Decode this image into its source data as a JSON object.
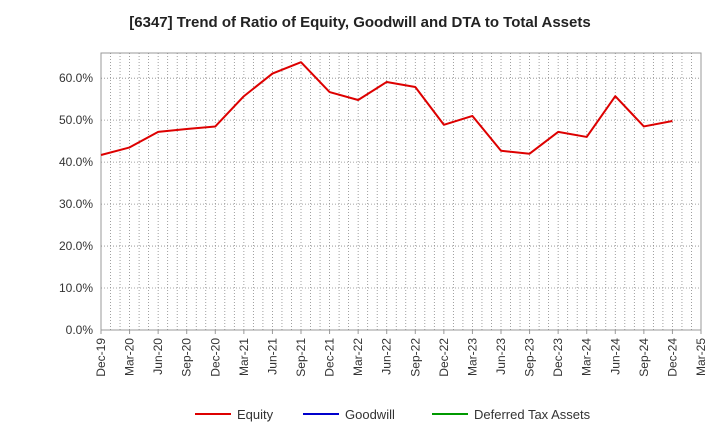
{
  "chart_data": {
    "type": "line",
    "title": "[6347]  Trend of Ratio of Equity, Goodwill and DTA to Total Assets",
    "xlabel": "",
    "ylabel": "",
    "x_tick_labels": [
      "Dec-19",
      "Mar-20",
      "Jun-20",
      "Sep-20",
      "Dec-20",
      "Mar-21",
      "Jun-21",
      "Sep-21",
      "Dec-21",
      "Mar-22",
      "Jun-22",
      "Sep-22",
      "Dec-22",
      "Mar-23",
      "Jun-23",
      "Sep-23",
      "Dec-23",
      "Mar-24",
      "Jun-24",
      "Sep-24",
      "Dec-24",
      "Mar-25"
    ],
    "y_tick_labels": [
      "0.0%",
      "10.0%",
      "20.0%",
      "30.0%",
      "40.0%",
      "50.0%",
      "60.0%"
    ],
    "ylim": [
      0,
      66
    ],
    "grid": true,
    "legend_position": "bottom",
    "series": [
      {
        "name": "Equity",
        "color": "#dd0000",
        "x": [
          "Dec-19",
          "Mar-20",
          "Jun-20",
          "Sep-20",
          "Dec-20",
          "Mar-21",
          "Jun-21",
          "Sep-21",
          "Dec-21",
          "Mar-22",
          "Jun-22",
          "Sep-22",
          "Dec-22",
          "Mar-23",
          "Jun-23",
          "Sep-23",
          "Dec-23",
          "Mar-24",
          "Jun-24",
          "Sep-24",
          "Dec-24"
        ],
        "values": [
          41.7,
          43.5,
          47.2,
          47.9,
          48.5,
          55.7,
          61.1,
          63.8,
          56.7,
          54.8,
          59.1,
          57.9,
          48.9,
          51.0,
          42.7,
          42.0,
          47.2,
          46.0,
          55.7,
          48.5,
          49.8
        ]
      },
      {
        "name": "Goodwill",
        "color": "#0000cc",
        "x": [],
        "values": []
      },
      {
        "name": "Deferred Tax Assets",
        "color": "#009900",
        "x": [],
        "values": []
      }
    ]
  }
}
